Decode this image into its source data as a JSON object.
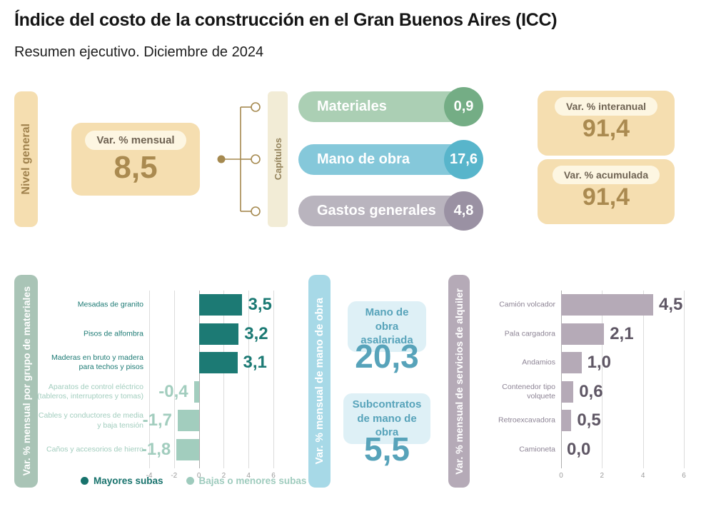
{
  "header": {
    "title": "Índice del costo de la construcción en el Gran Buenos Aires (ICC)",
    "subtitle": "Resumen ejecutivo. Diciembre de 2024"
  },
  "nivel_general": {
    "strip_label": "Nivel general",
    "monthly": {
      "label": "Var. % mensual",
      "value": "8,5"
    },
    "interannual": {
      "label": "Var. % interanual",
      "value": "91,4"
    },
    "accumulated": {
      "label": "Var. % acumulada",
      "value": "91,4"
    }
  },
  "capitulos": {
    "strip_label": "Capítulos",
    "items": [
      {
        "label": "Materiales",
        "value": "0,9",
        "pill_color": "#abcfb4",
        "circle_color": "#74ad85"
      },
      {
        "label": "Mano de obra",
        "value": "17,6",
        "pill_color": "#85c8da",
        "circle_color": "#58b5cb"
      },
      {
        "label": "Gastos generales",
        "value": "4,8",
        "pill_color": "#b9b4be",
        "circle_color": "#9a91a3"
      }
    ]
  },
  "mano_de_obra_panel": {
    "strip_label": "Var. % mensual de mano de obra",
    "items": [
      {
        "label": "Mano de obra asalariada",
        "value": "20,3"
      },
      {
        "label": "Subcontratos de mano de obra",
        "value": "5,5"
      }
    ]
  },
  "chart_data": [
    {
      "type": "bar",
      "orientation": "horizontal",
      "title": "Var. % mensual por grupo de materiales",
      "categories": [
        "Mesadas de granito",
        "Pisos de alfombra",
        "Maderas en bruto y madera para techos y pisos",
        "Aparatos de control eléctrico (tableros, interruptores y tomas)",
        "Cables y conductores de media y baja tensión",
        "Caños y accesorios de hierro"
      ],
      "values": [
        3.5,
        3.2,
        3.1,
        -0.4,
        -1.7,
        -1.8
      ],
      "value_labels": [
        "3,5",
        "3,2",
        "3,1",
        "-0,4",
        "-1,7",
        "-1,8"
      ],
      "xlim": [
        -4,
        6
      ],
      "ticks": [
        -4,
        -2,
        0,
        2,
        4,
        6
      ],
      "grid": true,
      "positive_color": "#1c7a74",
      "negative_color": "#a2cdbe",
      "legend": [
        {
          "label": "Mayores subas",
          "color": "#17726c"
        },
        {
          "label": "Bajas o menores subas",
          "color": "#9ecbbd"
        }
      ],
      "legend_position": "bottom"
    },
    {
      "type": "bar",
      "orientation": "horizontal",
      "title": "Var. % mensual de servicios de alquiler",
      "categories": [
        "Camión volcador",
        "Pala cargadora",
        "Andamios",
        "Contenedor tipo volquete",
        "Retroexcavadora",
        "Camioneta"
      ],
      "values": [
        4.5,
        2.1,
        1.0,
        0.6,
        0.5,
        0.0
      ],
      "value_labels": [
        "4,5",
        "2,1",
        "1,0",
        "0,6",
        "0,5",
        "0,0"
      ],
      "xlim": [
        0,
        6
      ],
      "ticks": [
        0,
        2,
        4,
        6
      ],
      "grid": true,
      "bar_color": "#b5aab7",
      "value_color": "#5f5765",
      "label_color": "#8d8495"
    }
  ],
  "colors": {
    "tan": "#f5deb0",
    "cream": "#fdf6e2",
    "brown_number": "#aa8a50",
    "brown_text": "#a0824d",
    "connector": "#a5894f",
    "sage_strip": "#a9c4b6",
    "blue_strip": "#a7d9e7",
    "teal_blue_text": "#57a3ba",
    "light_blue_box": "#def0f6",
    "mauve": "#b5aab7"
  }
}
